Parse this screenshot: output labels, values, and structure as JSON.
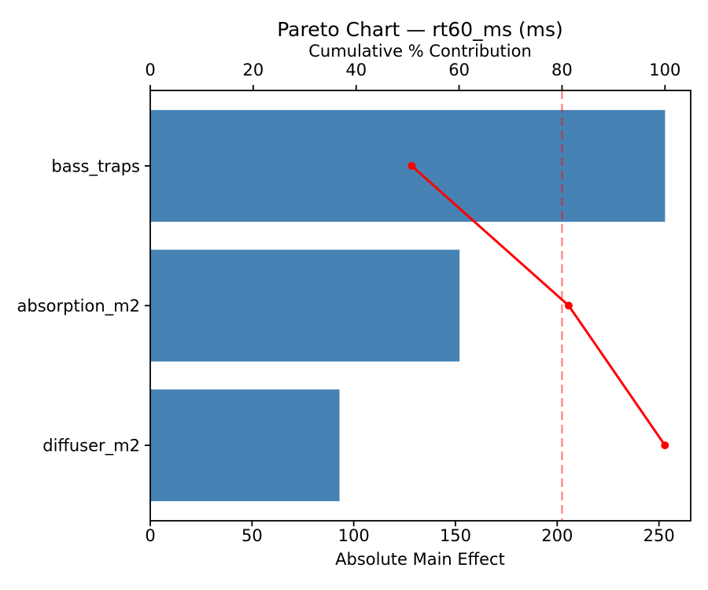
{
  "chart_data": {
    "type": "bar",
    "subtype": "pareto-horizontal-with-cumulative-line",
    "title": "Pareto Chart — rt60_ms (ms)",
    "xlabel_top": "Cumulative % Contribution",
    "xlabel_bottom": "Absolute Main Effect",
    "categories": [
      "bass_traps",
      "absorption_m2",
      "diffuser_m2"
    ],
    "bar_values": [
      253,
      152,
      93
    ],
    "cumulative_pct": [
      50.8,
      81.3,
      100.0
    ],
    "threshold_pct": 80,
    "axis_bottom": {
      "min": 0,
      "max": 265.6,
      "ticks": [
        0,
        50,
        100,
        150,
        200,
        250
      ]
    },
    "axis_top": {
      "min": 0,
      "max": 105,
      "ticks": [
        0,
        20,
        40,
        60,
        80,
        100
      ]
    },
    "grid": false,
    "legend": false,
    "colors": {
      "bar": "#4682B4",
      "cumulative_line": "#FF0000",
      "threshold_line": "#FF0000",
      "threshold_opacity": 0.5,
      "axis": "#000000",
      "text": "#000000",
      "background": "#FFFFFF"
    }
  }
}
